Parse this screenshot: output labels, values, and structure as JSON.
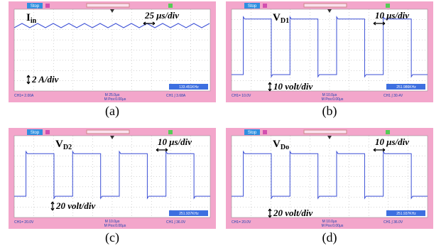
{
  "panels": [
    {
      "caption": "(a)",
      "stop": "Stop",
      "label": {
        "main": "I",
        "sub": "in"
      },
      "time_scale": "25 μs/div",
      "amp_scale": "2 A/div",
      "ch1": "CH1= 2.00A",
      "timebase": "M 25.0μs",
      "mpos": "M Pos:0.00μs",
      "trigger": "CH1 ∫ 3.68A",
      "frequency": "133.451KHz"
    },
    {
      "caption": "(b)",
      "stop": "Stop",
      "label": {
        "main": "V",
        "sub": "D1"
      },
      "time_scale": "10 μs/div",
      "amp_scale": "10 volt/div",
      "ch1": "CH1= 10.0V",
      "timebase": "M 10.0μs",
      "mpos": "M Pos:0.00μs",
      "trigger": "CH1 ∫ 30.4V",
      "frequency": "251.986KHz"
    },
    {
      "caption": "(c)",
      "stop": "Stop",
      "label": {
        "main": "V",
        "sub": "D2"
      },
      "time_scale": "10 μs/div",
      "amp_scale": "20 volt/div",
      "ch1": "CH1= 20.0V",
      "timebase": "M 10.0μs",
      "mpos": "M Pos:0.00μs",
      "trigger": "CH1 ∫ 36.0V",
      "frequency": "251.937KHz"
    },
    {
      "caption": "(d)",
      "stop": "Stop",
      "label": {
        "main": "V",
        "sub": "Do"
      },
      "time_scale": "10 μs/div",
      "amp_scale": "20 volt/div",
      "ch1": "CH1= 20.0V",
      "timebase": "M 10.0μs",
      "mpos": "M Pos:0.00μs",
      "trigger": "CH1 ∫ 36.0V",
      "frequency": "251.937KHz"
    }
  ]
}
